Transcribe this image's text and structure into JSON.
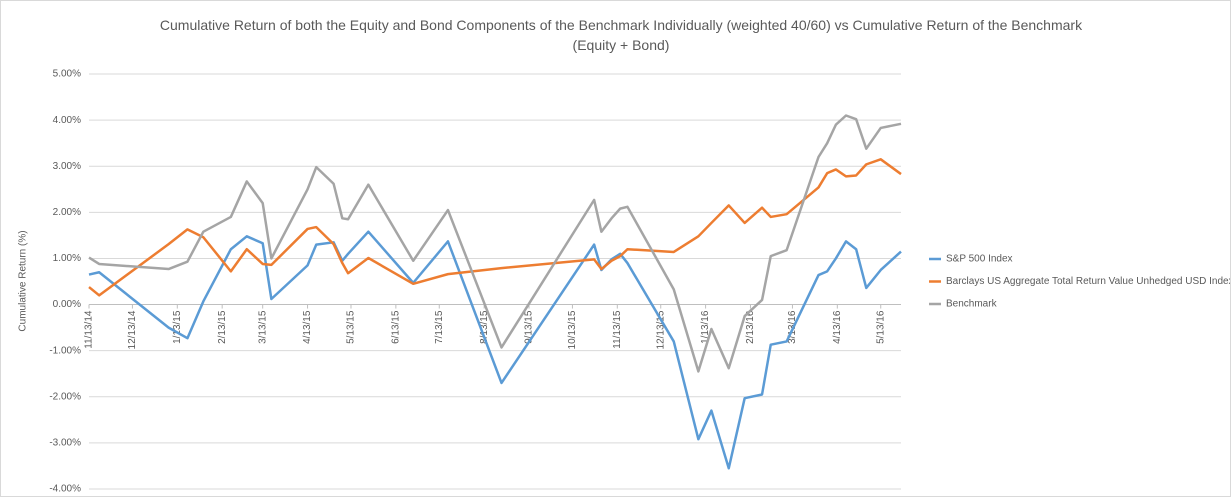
{
  "chart_data": {
    "type": "line",
    "title": "Cumulative Return of both the Equity and Bond Components of the Benchmark  Individually (weighted 40/60) vs Cumulative Return of the Benchmark (Equity + Bond)",
    "ylabel": "Cumulative Return (%)",
    "x": [
      "11/13/14",
      "11/20/14",
      "1/7/15",
      "1/20/15",
      "1/31/15",
      "2/19/15",
      "3/2/15",
      "3/13/15",
      "3/19/15",
      "4/13/15",
      "4/19/15",
      "5/1/15",
      "5/7/15",
      "5/11/15",
      "5/25/15",
      "6/25/15",
      "7/19/15",
      "8/25/15",
      "10/28/15",
      "11/2/15",
      "11/9/15",
      "11/15/15",
      "11/20/15",
      "12/22/15",
      "1/8/16",
      "1/17/16",
      "1/29/16",
      "2/9/16",
      "2/21/16",
      "2/27/16",
      "3/9/16",
      "3/31/16",
      "4/6/16",
      "4/12/16",
      "4/19/16",
      "4/26/16",
      "5/3/16",
      "5/13/16",
      "5/27/16"
    ],
    "xlim": [
      "11/13/14",
      "5/27/16"
    ],
    "xticks": [
      "11/13/14",
      "12/13/14",
      "1/13/15",
      "2/13/15",
      "3/13/15",
      "4/13/15",
      "5/13/15",
      "6/13/15",
      "7/13/15",
      "8/13/15",
      "9/13/15",
      "10/13/15",
      "11/13/15",
      "12/13/15",
      "1/13/16",
      "2/13/16",
      "3/13/16",
      "4/13/16",
      "5/13/16"
    ],
    "ylim": [
      -4,
      5
    ],
    "yticks": [
      {
        "value": -4,
        "label": "-4.00%"
      },
      {
        "value": -3,
        "label": "-3.00%"
      },
      {
        "value": -2,
        "label": "-2.00%"
      },
      {
        "value": -1,
        "label": "-1.00%"
      },
      {
        "value": 0,
        "label": "0.00%"
      },
      {
        "value": 1,
        "label": "1.00%"
      },
      {
        "value": 2,
        "label": "2.00%"
      },
      {
        "value": 3,
        "label": "3.00%"
      },
      {
        "value": 4,
        "label": "4.00%"
      },
      {
        "value": 5,
        "label": "5.00%"
      }
    ],
    "grid": true,
    "legend": "right",
    "series": [
      {
        "name": "S&P 500 Index",
        "color": "#5b9bd5",
        "values": [
          0.65,
          0.7,
          -0.5,
          -0.73,
          0.07,
          1.2,
          1.48,
          1.33,
          0.12,
          0.85,
          1.3,
          1.35,
          0.95,
          1.1,
          1.58,
          0.47,
          1.37,
          -1.7,
          1.3,
          0.75,
          0.98,
          1.1,
          0.9,
          -0.8,
          -2.92,
          -2.3,
          -3.55,
          -2.03,
          -1.95,
          -0.87,
          -0.8,
          0.64,
          0.72,
          1.0,
          1.37,
          1.2,
          0.36,
          0.75,
          1.15
        ]
      },
      {
        "name": "Barclays US Aggregate Total Return Value Unhedged USD Index",
        "color": "#ed7d31",
        "values": [
          0.38,
          0.2,
          1.31,
          1.63,
          1.46,
          0.72,
          1.2,
          0.88,
          0.86,
          1.64,
          1.68,
          1.31,
          0.9,
          0.68,
          1.01,
          0.45,
          0.66,
          0.79,
          0.98,
          0.77,
          0.95,
          1.05,
          1.2,
          1.14,
          1.48,
          1.77,
          2.15,
          1.77,
          2.1,
          1.9,
          1.96,
          2.54,
          2.85,
          2.93,
          2.78,
          2.8,
          3.04,
          3.15,
          2.83
        ]
      },
      {
        "name": "Benchmark",
        "color": "#a5a5a5",
        "values": [
          1.02,
          0.88,
          0.77,
          0.93,
          1.58,
          1.9,
          2.67,
          2.2,
          1.0,
          2.5,
          2.98,
          2.62,
          1.87,
          1.85,
          2.6,
          0.95,
          2.05,
          -0.93,
          2.27,
          1.58,
          1.87,
          2.08,
          2.12,
          0.33,
          -1.45,
          -0.53,
          -1.38,
          -0.25,
          0.1,
          1.05,
          1.18,
          3.2,
          3.5,
          3.9,
          4.1,
          4.02,
          3.38,
          3.83,
          3.92
        ]
      }
    ]
  }
}
